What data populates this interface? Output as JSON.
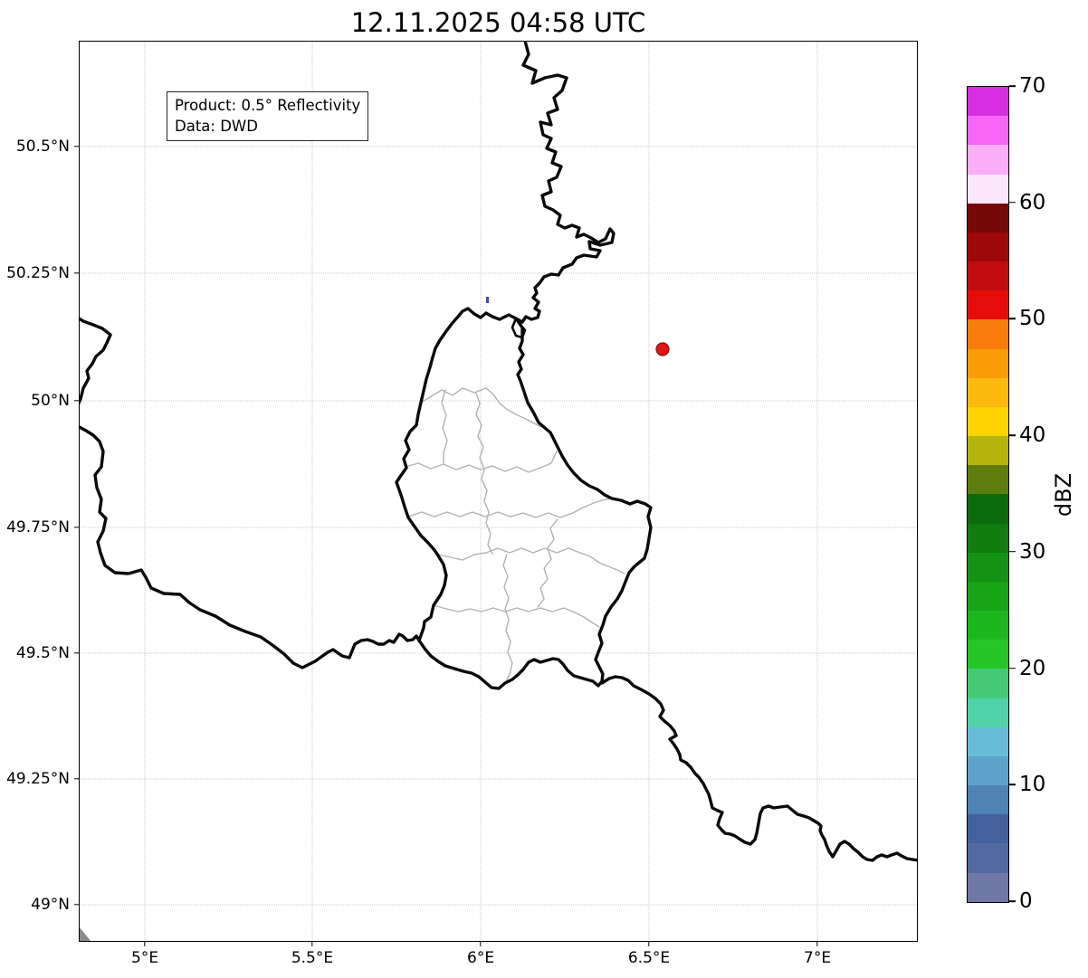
{
  "figure": {
    "title": "12.11.2025 04:58 UTC",
    "info_box": {
      "line1": "Product: 0.5° Reflectivity",
      "line2": "Data: DWD"
    }
  },
  "axes": {
    "x_ticks": [
      {
        "label": "5°E",
        "pos": 0.0788
      },
      {
        "label": "5.5°E",
        "pos": 0.2783
      },
      {
        "label": "6°E",
        "pos": 0.479
      },
      {
        "label": "6.5°E",
        "pos": 0.6796
      },
      {
        "label": "7°E",
        "pos": 0.8803
      }
    ],
    "y_ticks": [
      {
        "label": "50.5°N",
        "pos": 0.1175
      },
      {
        "label": "50.25°N",
        "pos": 0.258
      },
      {
        "label": "50°N",
        "pos": 0.3996
      },
      {
        "label": "49.75°N",
        "pos": 0.5402
      },
      {
        "label": "49.5°N",
        "pos": 0.6797
      },
      {
        "label": "49.25°N",
        "pos": 0.8193
      },
      {
        "label": "49°N",
        "pos": 0.9588
      }
    ]
  },
  "colorbar": {
    "label": "dBZ",
    "min": 0,
    "max": 70,
    "ticks": [
      {
        "label": "0",
        "value": 0
      },
      {
        "label": "10",
        "value": 10
      },
      {
        "label": "20",
        "value": 20
      },
      {
        "label": "30",
        "value": 30
      },
      {
        "label": "40",
        "value": 40
      },
      {
        "label": "50",
        "value": 50
      },
      {
        "label": "60",
        "value": 60
      },
      {
        "label": "70",
        "value": 70
      }
    ],
    "segments": [
      {
        "from": 0,
        "to": 2.5,
        "color": "#6e77a6"
      },
      {
        "from": 2.5,
        "to": 5,
        "color": "#53699f"
      },
      {
        "from": 5,
        "to": 7.5,
        "color": "#44619e"
      },
      {
        "from": 7.5,
        "to": 10,
        "color": "#4f82b5"
      },
      {
        "from": 10,
        "to": 12.5,
        "color": "#5da3c9"
      },
      {
        "from": 12.5,
        "to": 15,
        "color": "#65bdd8"
      },
      {
        "from": 15,
        "to": 17.5,
        "color": "#52d2a8"
      },
      {
        "from": 17.5,
        "to": 20,
        "color": "#44ca74"
      },
      {
        "from": 20,
        "to": 22.5,
        "color": "#26c626"
      },
      {
        "from": 22.5,
        "to": 25,
        "color": "#1db71d"
      },
      {
        "from": 25,
        "to": 27.5,
        "color": "#17a517"
      },
      {
        "from": 27.5,
        "to": 30,
        "color": "#149214"
      },
      {
        "from": 30,
        "to": 32.5,
        "color": "#0f7d0f"
      },
      {
        "from": 32.5,
        "to": 35,
        "color": "#0c6b0c"
      },
      {
        "from": 35,
        "to": 37.5,
        "color": "#5d7d0c"
      },
      {
        "from": 37.5,
        "to": 40,
        "color": "#b5b40c"
      },
      {
        "from": 40,
        "to": 42.5,
        "color": "#ffd204"
      },
      {
        "from": 42.5,
        "to": 45,
        "color": "#fcb80c"
      },
      {
        "from": 45,
        "to": 47.5,
        "color": "#fa9b08"
      },
      {
        "from": 47.5,
        "to": 50,
        "color": "#f87d0c"
      },
      {
        "from": 50,
        "to": 52.5,
        "color": "#e60d09"
      },
      {
        "from": 52.5,
        "to": 55,
        "color": "#c20c10"
      },
      {
        "from": 55,
        "to": 57.5,
        "color": "#9e0909"
      },
      {
        "from": 57.5,
        "to": 60,
        "color": "#760808"
      },
      {
        "from": 60,
        "to": 62.5,
        "color": "#fae6fa"
      },
      {
        "from": 62.5,
        "to": 65,
        "color": "#f9aef7"
      },
      {
        "from": 65,
        "to": 67.5,
        "color": "#f866f8"
      },
      {
        "from": 67.5,
        "to": 70,
        "color": "#d72ee2"
      }
    ]
  },
  "markers": {
    "radar_site": {
      "x": 732,
      "y": 386,
      "radius": 7,
      "fill": "#e01414",
      "stroke": "#8f0f0f",
      "lon": "6.54°E",
      "lat": "50.10°N"
    },
    "echo": {
      "x": 537,
      "y": 328,
      "width": 3,
      "height": 7,
      "fill": "#3f4f96",
      "lon": "6.02°E",
      "lat": "50.20°N"
    }
  }
}
